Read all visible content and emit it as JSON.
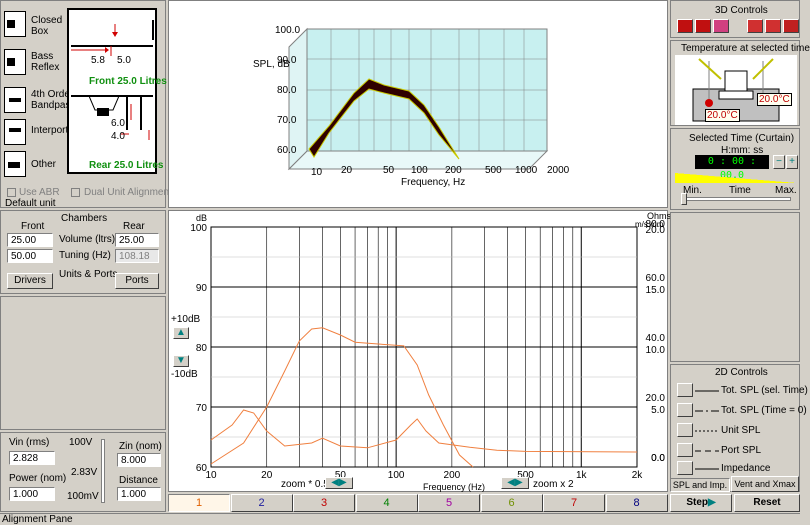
{
  "left_panel": {
    "enclosures": [
      {
        "label": "Closed\nBox"
      },
      {
        "label": "Bass\nReflex"
      },
      {
        "label": "4th Order\nBandpass"
      },
      {
        "label": "Interport"
      },
      {
        "label": "Other"
      }
    ],
    "diagram": {
      "dim_58": "5.8",
      "dim_50": "5.0",
      "front": "Front  25.0 Litres",
      "dim_60": "6.0",
      "dim_40": "4.0",
      "rear": "Rear  25.0 Litres"
    },
    "use_abr": "Use ABR",
    "dual_unit": "Dual Unit Alignment",
    "default_unit": "Default unit"
  },
  "chambers": {
    "title": "Chambers",
    "front_label": "Front",
    "rear_label": "Rear",
    "volume_label": "Volume (ltrs)",
    "tuning_label": "Tuning (Hz)",
    "front_volume": "25.00",
    "rear_volume": "25.00",
    "front_tuning": "50.00",
    "rear_tuning": "108.18",
    "units_ports": "Units & Ports",
    "drivers_btn": "Drivers",
    "ports_btn": "Ports"
  },
  "inputs": {
    "vin_label": "Vin (rms)",
    "vin_value": "2.828",
    "power_label": "Power (nom)",
    "power_value": "1.000",
    "v_top": "100V",
    "v_mid": "2.83V",
    "v_bot": "100mV",
    "zin_label": "Zin (nom)",
    "zin_value": "8.000",
    "distance_label": "Distance",
    "distance_value": "1.000"
  },
  "plot3d": {
    "y_label": "SPL, dB",
    "x_label": "Frequency, Hz",
    "y_ticks": [
      "100.0",
      "90.0",
      "80.0",
      "70.0",
      "60.0"
    ],
    "x_ticks": [
      "10",
      "20",
      "50",
      "100",
      "200",
      "500",
      "1000",
      "2000"
    ]
  },
  "chart_data": {
    "type": "line",
    "xlabel": "Frequency (Hz)",
    "ylabel": "dB",
    "x_scale": "log",
    "xlim": [
      10,
      2000
    ],
    "ylim": [
      60,
      100
    ],
    "x_ticks": [
      "10",
      "20",
      "50",
      "100",
      "200",
      "500",
      "1k",
      "2k"
    ],
    "y_ticks": [
      "100",
      "90",
      "80",
      "70",
      "60"
    ],
    "right_axis_title": "Ohms",
    "right_axis_title2": "m/s  mm",
    "right_ticks_ohms": [
      "80.0",
      "60.0",
      "40.0",
      "20.0",
      "0.0"
    ],
    "right_ticks_mm": [
      "20.0",
      "15.0",
      "10.0",
      "5.0",
      "0.0"
    ],
    "grid": true,
    "series": [
      {
        "values": [
          [
            10,
            60.5
          ],
          [
            15,
            64
          ],
          [
            20,
            70
          ],
          [
            25,
            76
          ],
          [
            30,
            81
          ],
          [
            35,
            83
          ],
          [
            40,
            83.2
          ],
          [
            50,
            82
          ],
          [
            60,
            80.8
          ],
          [
            80,
            80.5
          ],
          [
            110,
            80.2
          ],
          [
            130,
            77
          ],
          [
            150,
            72
          ],
          [
            180,
            67
          ],
          [
            220,
            62
          ],
          [
            260,
            59
          ]
        ]
      },
      {
        "values": [
          [
            10,
            64.5
          ],
          [
            13,
            67
          ],
          [
            15,
            69.5
          ],
          [
            17,
            69
          ],
          [
            20,
            66
          ],
          [
            25,
            63.5
          ],
          [
            35,
            64
          ],
          [
            40,
            64.8
          ],
          [
            50,
            63.5
          ],
          [
            70,
            63.2
          ],
          [
            100,
            64.5
          ],
          [
            120,
            67
          ],
          [
            130,
            68
          ],
          [
            145,
            66
          ],
          [
            170,
            64
          ],
          [
            250,
            63.3
          ],
          [
            350,
            62.8
          ],
          [
            500,
            62.6
          ],
          [
            2000,
            62.5
          ]
        ]
      }
    ]
  },
  "plot2d": {
    "plus10": "+10dB",
    "minus10": "-10dB",
    "zoom_half": "zoom * 0.5",
    "zoom_double": "zoom x 2"
  },
  "right_panel": {
    "controls3d_title": "3D Controls",
    "temperature_title": "Temperature at selected time",
    "temp_left": "20.0°C",
    "temp_right": "20.0°C",
    "selected_time_title": "Selected Time (Curtain)",
    "time_format": "H:mm: ss",
    "time_value": "0 : 00 : 00.0",
    "min_label": "Min.",
    "time_label": "Time",
    "max_label": "Max.",
    "controls2d_title": "2D Controls",
    "legend": [
      {
        "label": "Tot. SPL (sel. Time)"
      },
      {
        "label": "Tot. SPL (Time = 0)"
      },
      {
        "label": "Unit SPL"
      },
      {
        "label": "Port SPL"
      },
      {
        "label": "Impedance"
      }
    ],
    "spl_imp_tab": "SPL and Imp.",
    "vent_tab": "Vent and Xmax"
  },
  "tabs": [
    "1",
    "2",
    "3",
    "4",
    "5",
    "6",
    "7",
    "8"
  ],
  "tab_colors": [
    "#e06000",
    "#2020a0",
    "#c00000",
    "#008000",
    "#a000a0",
    "#709000",
    "#c00000",
    "#000080"
  ],
  "step_btn": "Step",
  "reset_btn": "Reset",
  "status_bar": "Alignment Pane"
}
